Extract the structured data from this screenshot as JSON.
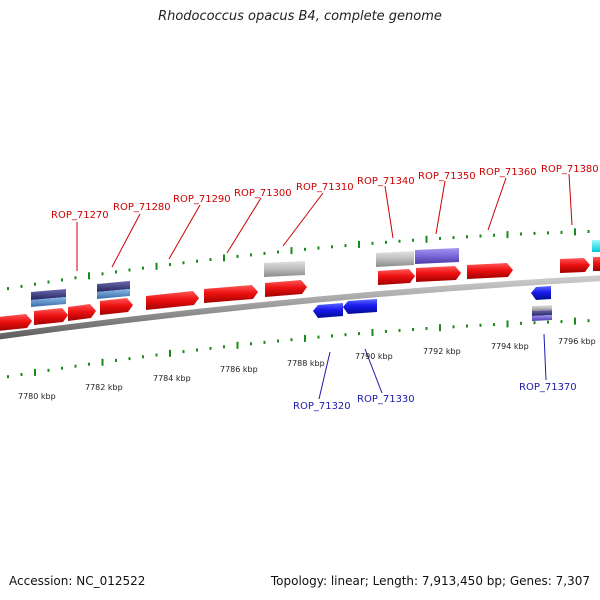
{
  "title": "Rhodococcus opacus B4, complete genome",
  "footer": {
    "accession": "Accession: NC_012522",
    "stats": "Topology: linear; Length: 7,913,450 bp; Genes: 7,307"
  },
  "colors": {
    "forward_gene": "#ee1111",
    "reverse_gene": "#1a1aee",
    "pseudo_gene": "#b8b8b8",
    "purple_feature": "#7b68d8",
    "navy_feature": "#3a3a80",
    "steel_feature": "#5b8fc8",
    "cyan_feature": "#00e5ee",
    "backbone": "#888888",
    "ticks": "#1a8a1a",
    "label_top": "#cc0000",
    "label_bottom": "#1a1aaa"
  },
  "scale_labels": [
    "7780 kbp",
    "7782 kbp",
    "7784 kbp",
    "7786 kbp",
    "7788 kbp",
    "7790 kbp",
    "7792 kbp",
    "7794 kbp",
    "7796 kbp"
  ],
  "top_gene_labels": [
    "ROP_71270",
    "ROP_71280",
    "ROP_71290",
    "ROP_71300",
    "ROP_71310",
    "ROP_71340",
    "ROP_71350",
    "ROP_71360",
    "ROP_71380"
  ],
  "bottom_gene_labels": [
    "ROP_71320",
    "ROP_71330",
    "ROP_71370"
  ]
}
